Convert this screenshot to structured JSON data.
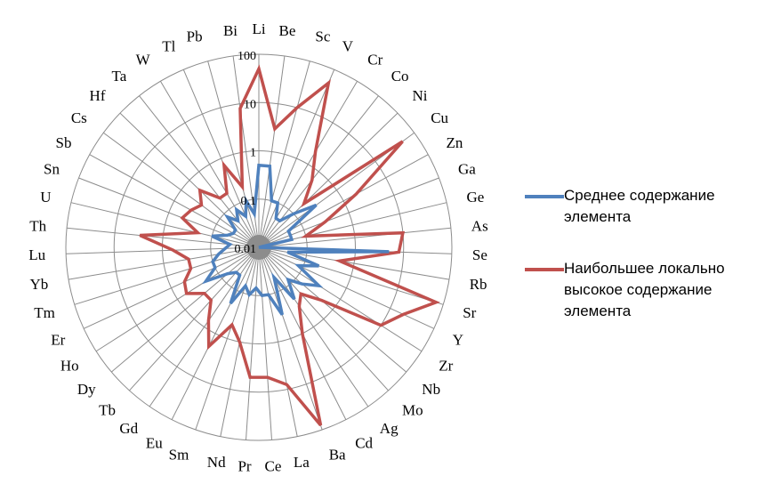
{
  "chart_data": {
    "type": "radar",
    "scale": "log",
    "rlim": [
      0.01,
      100
    ],
    "ring_labels": [
      "100",
      "10",
      "1",
      "0.1",
      "0.01"
    ],
    "grid": true,
    "legend_position": "right",
    "categories": [
      "Li",
      "Be",
      "Sc",
      "V",
      "Cr",
      "Co",
      "Ni",
      "Cu",
      "Zn",
      "Ga",
      "Ge",
      "As",
      "Se",
      "Rb",
      "Sr",
      "Y",
      "Zr",
      "Nb",
      "Mo",
      "Ag",
      "Cd",
      "Ba",
      "La",
      "Ce",
      "Pr",
      "Nd",
      "Sm",
      "Eu",
      "Gd",
      "Tb",
      "Dy",
      "Ho",
      "Er",
      "Tm",
      "Yb",
      "Lu",
      "Th",
      "U",
      "Sn",
      "Sb",
      "Cs",
      "Hf",
      "Ta",
      "W",
      "Tl",
      "Pb",
      "Bi"
    ],
    "series": [
      {
        "name": "Среднее содержание элемента",
        "color": "#4f81bd",
        "values": [
          0.5,
          0.5,
          0.1,
          0.1,
          0.05,
          0.05,
          0.1,
          0.3,
          0.05,
          0.05,
          0.05,
          0.01,
          5,
          0.04,
          0.2,
          0.08,
          0.3,
          0.15,
          0.08,
          0.2,
          0.05,
          0.3,
          0.1,
          0.1,
          0.07,
          0.1,
          0.07,
          0.2,
          0.05,
          0.05,
          0.07,
          0.2,
          0.1,
          0.1,
          0.07,
          0.05,
          0.04,
          0.1,
          0.05,
          0.04,
          0.04,
          0.08,
          0.05,
          0.08,
          0.05,
          0.1,
          0.05
        ]
      },
      {
        "name": "Наибольшее локально высокое содержание элемента",
        "color": "#c0504d",
        "values": [
          50,
          3,
          10,
          50,
          2,
          0.6,
          0.2,
          50,
          2,
          0.3,
          0.1,
          10,
          8,
          0.5,
          70,
          20,
          10,
          0.5,
          0.2,
          0.3,
          1,
          80,
          8,
          5,
          5,
          1,
          0.5,
          2,
          0.7,
          0.3,
          0.3,
          0.6,
          0.5,
          0.3,
          0.3,
          0.6,
          3,
          0.2,
          0.5,
          0.4,
          0.3,
          0.5,
          0.2,
          0.2,
          0.7,
          0.2,
          8
        ]
      }
    ]
  },
  "legend": {
    "items": [
      {
        "label": "Среднее содержание элемента",
        "color": "#4f81bd"
      },
      {
        "label": "Наибольшее локально высокое содержание элемента",
        "color": "#c0504d"
      }
    ]
  }
}
